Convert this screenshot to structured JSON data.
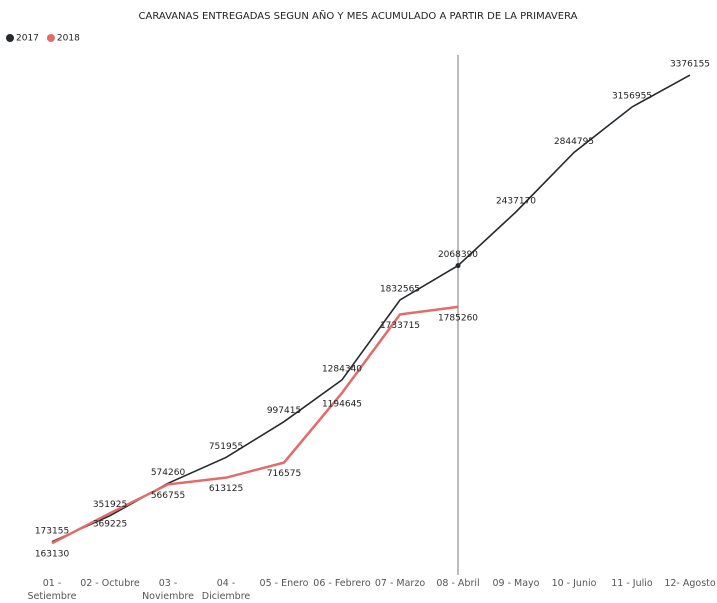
{
  "chart_data": {
    "type": "line",
    "title": "CARAVANAS ENTREGADAS SEGUN AÑO Y MES ACUMULADO A PARTIR DE LA PRIMAVERA",
    "categories": [
      "01 - Setiembre",
      "02 - Octubre",
      "03 - Noviembre",
      "04 - Diciembre",
      "05 - Enero",
      "06 - Febrero",
      "07 - Marzo",
      "08 - Abril",
      "09 - Mayo",
      "10 - Junio",
      "11 - Julio",
      "12- Agosto"
    ],
    "series": [
      {
        "name": "2017",
        "color": "#252a2e",
        "values": [
          173155,
          351925,
          574260,
          751955,
          997415,
          1284340,
          1832565,
          2068390,
          2437170,
          2844795,
          3156955,
          3376155
        ]
      },
      {
        "name": "2018",
        "color": "#e46b6b",
        "values": [
          163130,
          369225,
          566755,
          613125,
          716575,
          1194645,
          1733715,
          1785260,
          null,
          null,
          null,
          null
        ]
      }
    ],
    "ylim": [
      0,
      3500000
    ]
  }
}
